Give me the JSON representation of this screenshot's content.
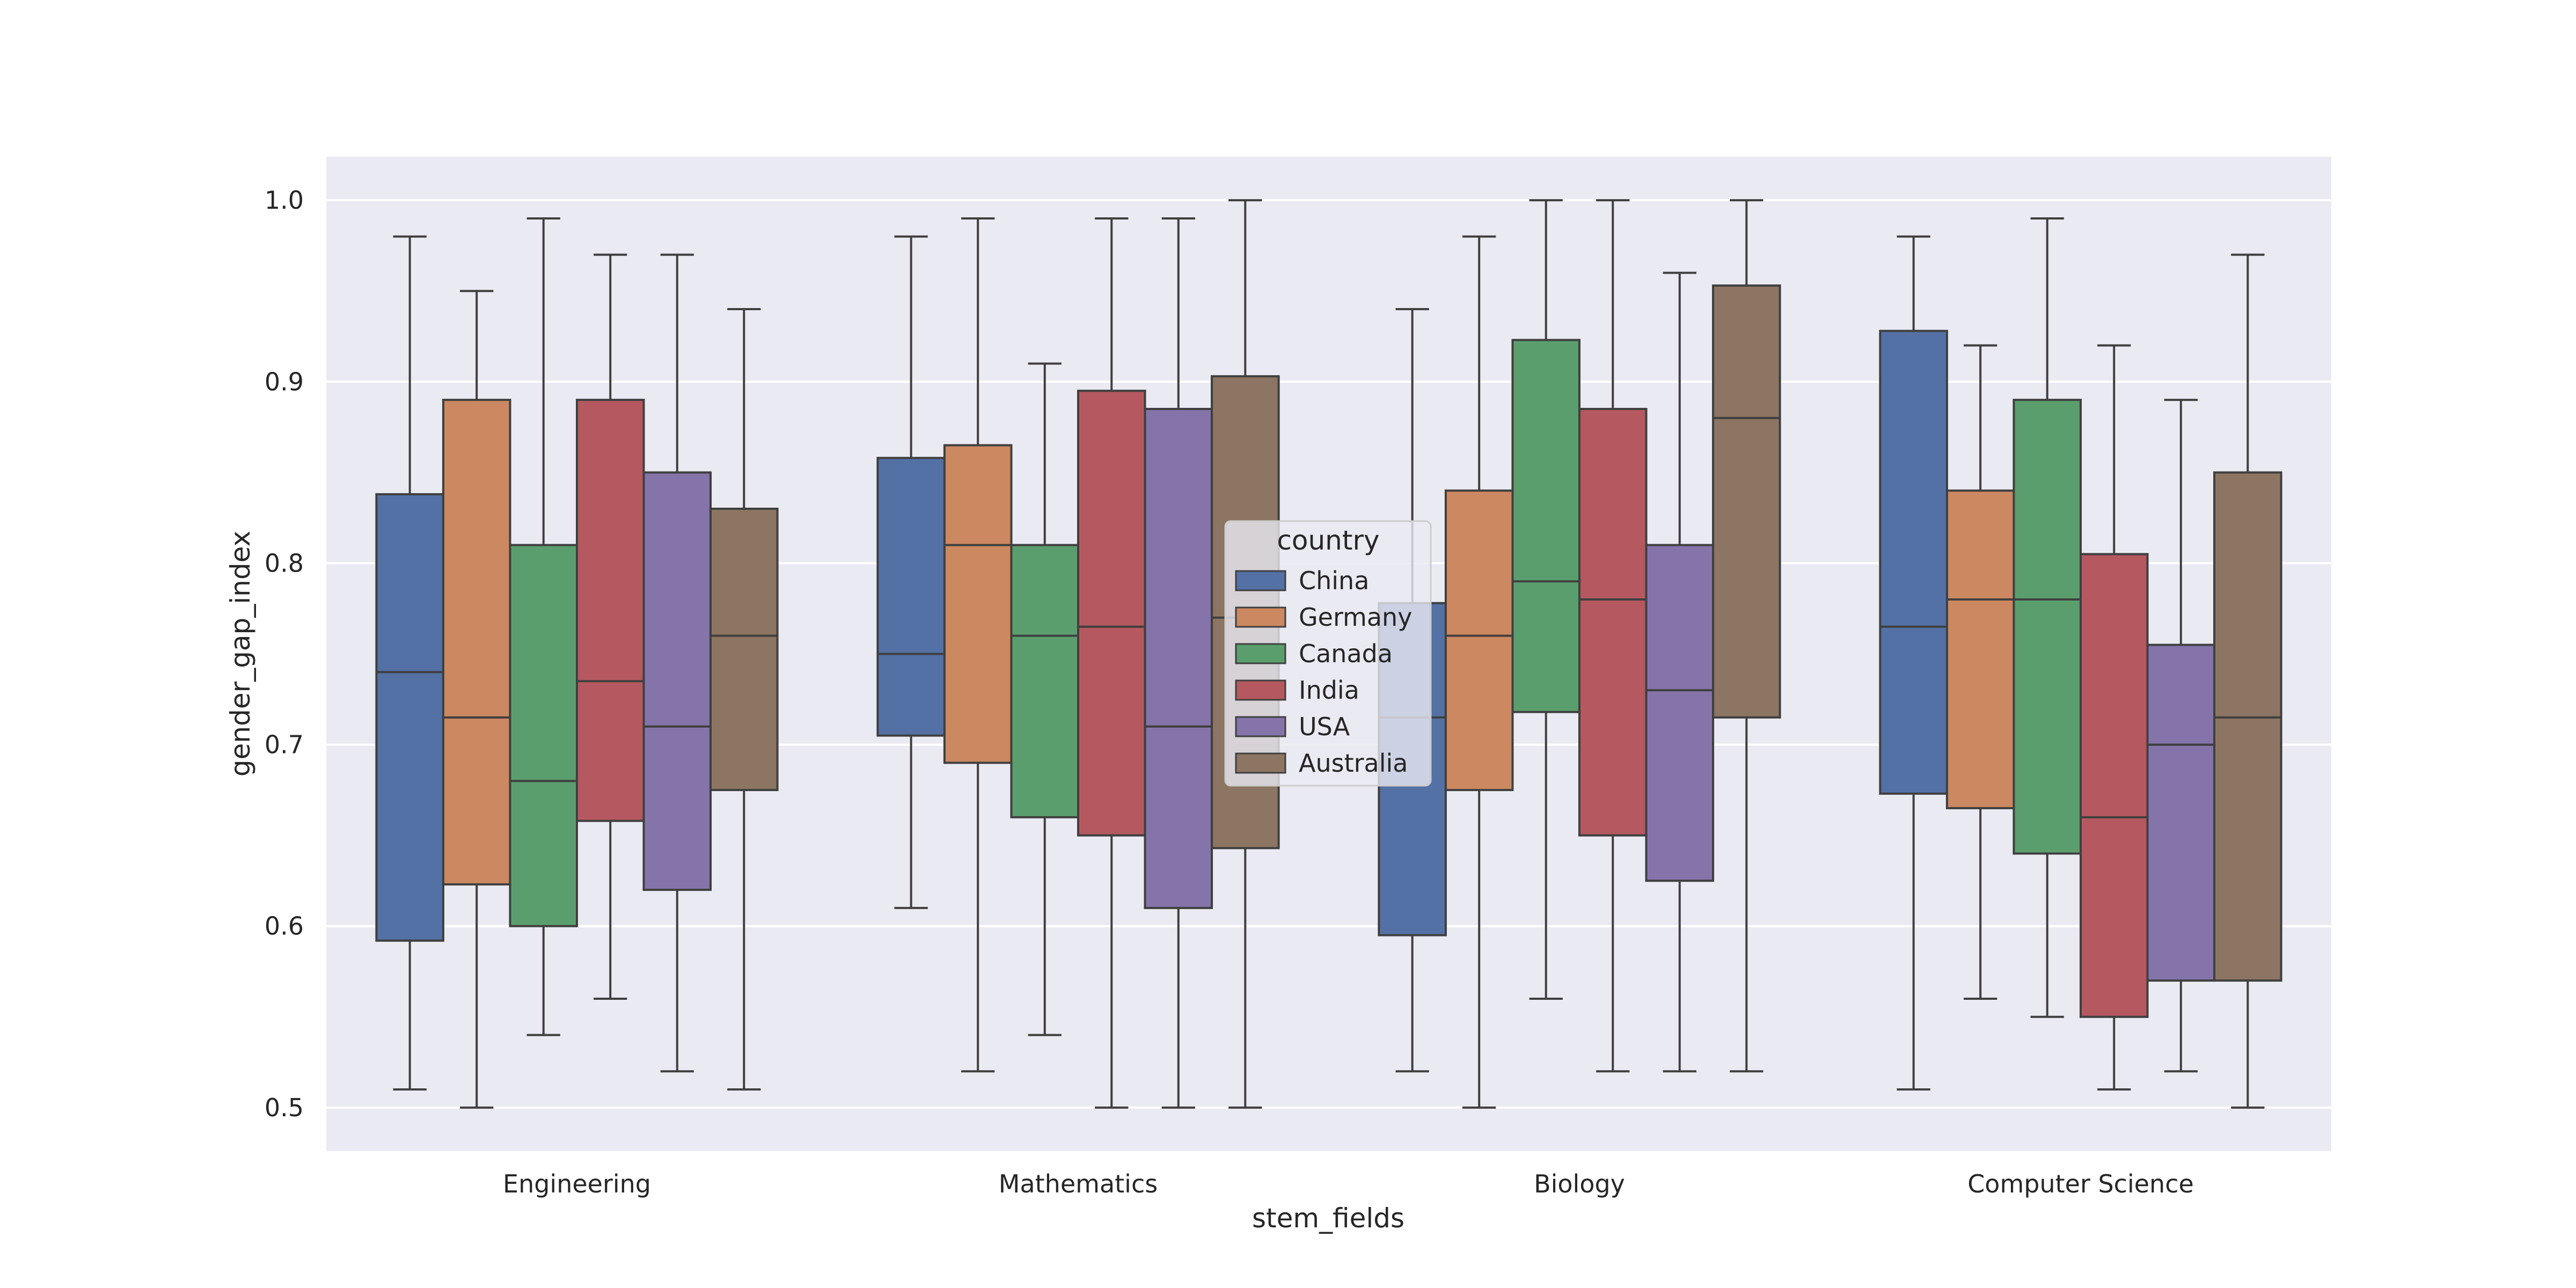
{
  "chart_data": {
    "type": "boxplot",
    "title": "",
    "xlabel": "stem_fields",
    "ylabel": "gender_gap_index",
    "ylim": [
      0.476,
      1.024
    ],
    "yticks": [
      0.5,
      0.6,
      0.7,
      0.8,
      0.9,
      1.0
    ],
    "ytick_labels": [
      "0.5",
      "0.6",
      "0.7",
      "0.8",
      "0.9",
      "1.0"
    ],
    "categories": [
      "Engineering",
      "Mathematics",
      "Biology",
      "Computer Science"
    ],
    "grid": true,
    "legend": {
      "title": "country",
      "placement": "center"
    },
    "series": [
      {
        "name": "China",
        "color": "#5471a5",
        "boxes": [
          {
            "whislo": 0.51,
            "q1": 0.592,
            "med": 0.74,
            "q3": 0.838,
            "whishi": 0.98
          },
          {
            "whislo": 0.61,
            "q1": 0.705,
            "med": 0.75,
            "q3": 0.858,
            "whishi": 0.98
          },
          {
            "whislo": 0.52,
            "q1": 0.595,
            "med": 0.715,
            "q3": 0.778,
            "whishi": 0.94
          },
          {
            "whislo": 0.51,
            "q1": 0.673,
            "med": 0.765,
            "q3": 0.928,
            "whishi": 0.98
          }
        ]
      },
      {
        "name": "Germany",
        "color": "#cc8860",
        "boxes": [
          {
            "whislo": 0.5,
            "q1": 0.623,
            "med": 0.715,
            "q3": 0.89,
            "whishi": 0.95
          },
          {
            "whislo": 0.52,
            "q1": 0.69,
            "med": 0.81,
            "q3": 0.865,
            "whishi": 0.99
          },
          {
            "whislo": 0.5,
            "q1": 0.675,
            "med": 0.76,
            "q3": 0.84,
            "whishi": 0.98
          },
          {
            "whislo": 0.56,
            "q1": 0.665,
            "med": 0.78,
            "q3": 0.84,
            "whishi": 0.92
          }
        ]
      },
      {
        "name": "Canada",
        "color": "#5b9e6e",
        "boxes": [
          {
            "whislo": 0.54,
            "q1": 0.6,
            "med": 0.68,
            "q3": 0.81,
            "whishi": 0.99
          },
          {
            "whislo": 0.54,
            "q1": 0.66,
            "med": 0.76,
            "q3": 0.81,
            "whishi": 0.91
          },
          {
            "whislo": 0.56,
            "q1": 0.718,
            "med": 0.79,
            "q3": 0.923,
            "whishi": 1.0
          },
          {
            "whislo": 0.55,
            "q1": 0.64,
            "med": 0.78,
            "q3": 0.89,
            "whishi": 0.99
          }
        ]
      },
      {
        "name": "India",
        "color": "#b5585f",
        "boxes": [
          {
            "whislo": 0.56,
            "q1": 0.658,
            "med": 0.735,
            "q3": 0.89,
            "whishi": 0.97
          },
          {
            "whislo": 0.5,
            "q1": 0.65,
            "med": 0.765,
            "q3": 0.895,
            "whishi": 0.99
          },
          {
            "whislo": 0.52,
            "q1": 0.65,
            "med": 0.78,
            "q3": 0.885,
            "whishi": 1.0
          },
          {
            "whislo": 0.51,
            "q1": 0.55,
            "med": 0.66,
            "q3": 0.805,
            "whishi": 0.92
          }
        ]
      },
      {
        "name": "USA",
        "color": "#8574aa",
        "boxes": [
          {
            "whislo": 0.52,
            "q1": 0.62,
            "med": 0.71,
            "q3": 0.85,
            "whishi": 0.97
          },
          {
            "whislo": 0.5,
            "q1": 0.61,
            "med": 0.71,
            "q3": 0.885,
            "whishi": 0.99
          },
          {
            "whislo": 0.52,
            "q1": 0.625,
            "med": 0.73,
            "q3": 0.81,
            "whishi": 0.96
          },
          {
            "whislo": 0.52,
            "q1": 0.57,
            "med": 0.7,
            "q3": 0.755,
            "whishi": 0.89
          }
        ]
      },
      {
        "name": "Australia",
        "color": "#8c7562",
        "boxes": [
          {
            "whislo": 0.51,
            "q1": 0.675,
            "med": 0.76,
            "q3": 0.83,
            "whishi": 0.94
          },
          {
            "whislo": 0.5,
            "q1": 0.643,
            "med": 0.77,
            "q3": 0.903,
            "whishi": 1.0
          },
          {
            "whislo": 0.52,
            "q1": 0.715,
            "med": 0.88,
            "q3": 0.953,
            "whishi": 1.0
          },
          {
            "whislo": 0.5,
            "q1": 0.57,
            "med": 0.715,
            "q3": 0.85,
            "whishi": 0.97
          }
        ]
      }
    ]
  }
}
